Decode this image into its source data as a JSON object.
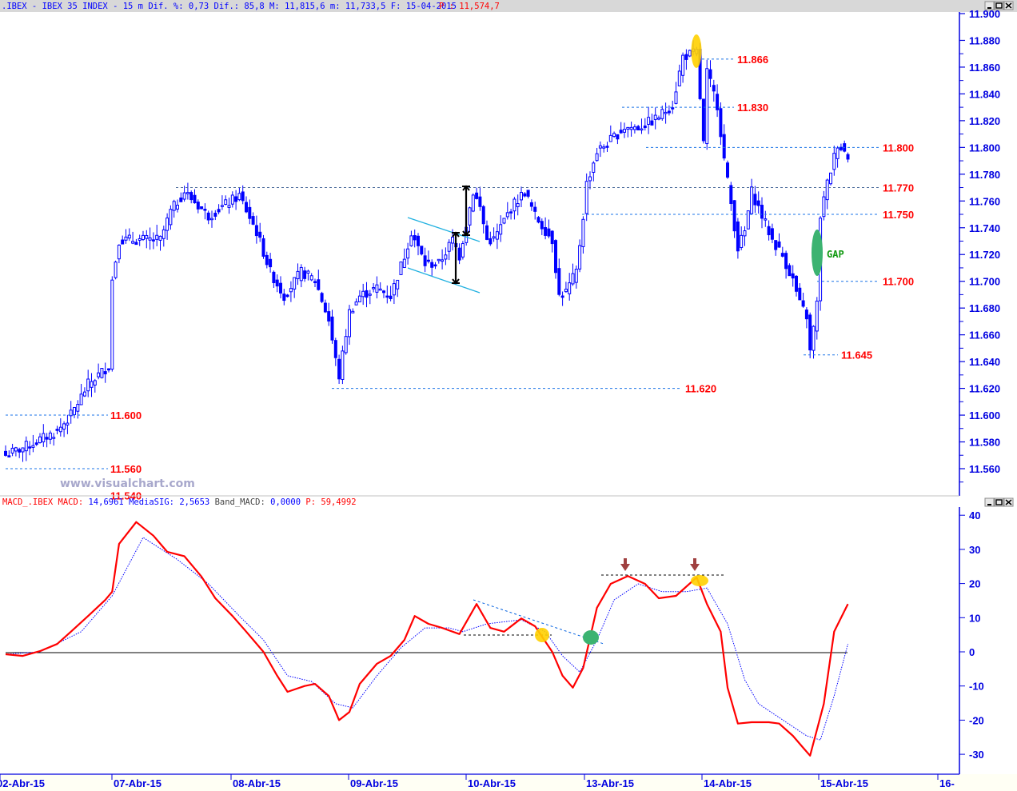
{
  "header": {
    "title": ".IBEX - IBEX 35 INDEX -  15 m Dif. %: 0,73 Dif.: 85,8 M: 11,815,6 m: 11,733,5 F: 15-04-2015",
    "price": "P : 11,574,7"
  },
  "macd_header": {
    "name": "MACD_.IBEX MACD:",
    "macd_value": "14,6961",
    "signal_label": "MediaSIG:",
    "signal_value": "2,5653",
    "band_label": "Band_MACD:",
    "band_value": "0,0000",
    "p_label": "P:",
    "p_value": "59,4992"
  },
  "watermark": "www.visualchart.com",
  "window_buttons": [
    "minimize",
    "maximize",
    "close"
  ],
  "colors": {
    "candle": "#0000ff",
    "level_label": "#ff0000",
    "level_line": "#1a73e8",
    "macd": "#ff0000",
    "signal": "#0000ff",
    "gap": "#3cb371",
    "highlight": "#ffd000"
  },
  "chart_data": [
    {
      "type": "candlestick",
      "title": "",
      "ylim": [
        11.54,
        11.9
      ],
      "y_ticks": [
        "11.900",
        "11.880",
        "11.860",
        "11.840",
        "11.820",
        "11.800",
        "11.780",
        "11.760",
        "11.740",
        "11.720",
        "11.700",
        "11.680",
        "11.660",
        "11.640",
        "11.620",
        "11.600",
        "11.580",
        "11.560"
      ],
      "x_ticks": [
        "02-Abr-15",
        "07-Abr-15",
        "08-Abr-15",
        "09-Abr-15",
        "10-Abr-15",
        "13-Abr-15",
        "14-Abr-15",
        "15-Abr-15",
        "16-"
      ],
      "interval": "15 m",
      "approx_close_path": [
        [
          0,
          11.57
        ],
        [
          8,
          11.579
        ],
        [
          15,
          11.588
        ],
        [
          19,
          11.6
        ],
        [
          24,
          11.623
        ],
        [
          30,
          11.637
        ],
        [
          31,
          11.701
        ],
        [
          33,
          11.731
        ],
        [
          36,
          11.731
        ],
        [
          40,
          11.731
        ],
        [
          45,
          11.731
        ],
        [
          48,
          11.752
        ],
        [
          52,
          11.767
        ],
        [
          59,
          11.749
        ],
        [
          68,
          11.764
        ],
        [
          73,
          11.737
        ],
        [
          77,
          11.707
        ],
        [
          81,
          11.689
        ],
        [
          86,
          11.707
        ],
        [
          90,
          11.701
        ],
        [
          94,
          11.671
        ],
        [
          96,
          11.641
        ],
        [
          97,
          11.629
        ],
        [
          100,
          11.677
        ],
        [
          103,
          11.689
        ],
        [
          108,
          11.695
        ],
        [
          112,
          11.689
        ],
        [
          116,
          11.719
        ],
        [
          118,
          11.737
        ],
        [
          122,
          11.713
        ],
        [
          126,
          11.713
        ],
        [
          130,
          11.731
        ],
        [
          132,
          11.719
        ],
        [
          133,
          11.731
        ],
        [
          136,
          11.767
        ],
        [
          138,
          11.755
        ],
        [
          140,
          11.731
        ],
        [
          142,
          11.731
        ],
        [
          147,
          11.755
        ],
        [
          151,
          11.767
        ],
        [
          154,
          11.749
        ],
        [
          159,
          11.731
        ],
        [
          161,
          11.689
        ],
        [
          163,
          11.692
        ],
        [
          166,
          11.707
        ],
        [
          168,
          11.749
        ],
        [
          169,
          11.773
        ],
        [
          172,
          11.797
        ],
        [
          175,
          11.803
        ],
        [
          180,
          11.815
        ],
        [
          184,
          11.815
        ],
        [
          189,
          11.821
        ],
        [
          194,
          11.832
        ],
        [
          197,
          11.868
        ],
        [
          201,
          11.871
        ],
        [
          203,
          11.803
        ],
        [
          204,
          11.856
        ],
        [
          207,
          11.832
        ],
        [
          209,
          11.791
        ],
        [
          211,
          11.758
        ],
        [
          213,
          11.725
        ],
        [
          215,
          11.737
        ],
        [
          217,
          11.767
        ],
        [
          220,
          11.749
        ],
        [
          223,
          11.731
        ],
        [
          226,
          11.719
        ],
        [
          229,
          11.701
        ],
        [
          231,
          11.683
        ],
        [
          233,
          11.674
        ],
        [
          234,
          11.647
        ],
        [
          236,
          11.683
        ],
        [
          237,
          11.749
        ],
        [
          239,
          11.773
        ],
        [
          242,
          11.803
        ],
        [
          245,
          11.794
        ]
      ],
      "levels": [
        {
          "label": "11.866",
          "value": 11.866
        },
        {
          "label": "11.830",
          "value": 11.83
        },
        {
          "label": "11.800",
          "value": 11.8
        },
        {
          "label": "11.770",
          "value": 11.77
        },
        {
          "label": "11.750",
          "value": 11.75
        },
        {
          "label": "11.700",
          "value": 11.7
        },
        {
          "label": "11.645",
          "value": 11.645
        },
        {
          "label": "11.620",
          "value": 11.62
        },
        {
          "label": "11.600",
          "value": 11.6
        },
        {
          "label": "11.560",
          "value": 11.56
        },
        {
          "label": "11.540",
          "value": 11.54
        }
      ],
      "annotations": {
        "gap_label": "GAP"
      }
    },
    {
      "type": "line",
      "title": "MACD",
      "ylim": [
        -35,
        42
      ],
      "y_ticks": [
        "40",
        "30",
        "20",
        "10",
        "0",
        "-10",
        "-20",
        "-30"
      ],
      "series": [
        {
          "name": "MACD",
          "points": [
            [
              0,
              -0.7
            ],
            [
              5,
              -1.2
            ],
            [
              10,
              0.2
            ],
            [
              15,
              2.3
            ],
            [
              19,
              5.9
            ],
            [
              24,
              10.5
            ],
            [
              29,
              15.2
            ],
            [
              31,
              17.6
            ],
            [
              33,
              31.6
            ],
            [
              38,
              38
            ],
            [
              43,
              34
            ],
            [
              47,
              29.3
            ],
            [
              52,
              28
            ],
            [
              57,
              22
            ],
            [
              61,
              15.7
            ],
            [
              66,
              10.5
            ],
            [
              70,
              5.9
            ],
            [
              75,
              0
            ],
            [
              79,
              -7
            ],
            [
              82,
              -11.7
            ],
            [
              87,
              -10
            ],
            [
              90,
              -9.4
            ],
            [
              94,
              -12.9
            ],
            [
              97,
              -20
            ],
            [
              100,
              -17.6
            ],
            [
              103,
              -9.4
            ],
            [
              108,
              -3.5
            ],
            [
              112,
              -1.2
            ],
            [
              116,
              3.5
            ],
            [
              119,
              10.5
            ],
            [
              123,
              8.2
            ],
            [
              127,
              7
            ],
            [
              132,
              5.2
            ],
            [
              137,
              14
            ],
            [
              141,
              7
            ],
            [
              145,
              5.9
            ],
            [
              150,
              9.8
            ],
            [
              154,
              7.5
            ],
            [
              159,
              0
            ],
            [
              162,
              -7
            ],
            [
              165,
              -10.5
            ],
            [
              168,
              -4.7
            ],
            [
              172,
              12.9
            ],
            [
              176,
              19.9
            ],
            [
              181,
              22.2
            ],
            [
              186,
              19.9
            ],
            [
              190,
              15.7
            ],
            [
              195,
              16.4
            ],
            [
              201,
              21.8
            ],
            [
              204,
              14
            ],
            [
              208,
              5.9
            ],
            [
              210,
              -10.5
            ],
            [
              213,
              -21
            ],
            [
              217,
              -20.6
            ],
            [
              222,
              -20.6
            ],
            [
              225,
              -21
            ],
            [
              229,
              -24.6
            ],
            [
              232,
              -28.1
            ],
            [
              234,
              -30.4
            ],
            [
              238,
              -15.2
            ],
            [
              241,
              5.9
            ],
            [
              245,
              14
            ]
          ]
        },
        {
          "name": "MediaSIG",
          "points": [
            [
              0,
              -0.7
            ],
            [
              10,
              0
            ],
            [
              22,
              5.9
            ],
            [
              31,
              16.4
            ],
            [
              40,
              33.5
            ],
            [
              50,
              27
            ],
            [
              59,
              19.9
            ],
            [
              68,
              10.5
            ],
            [
              75,
              3.5
            ],
            [
              82,
              -7
            ],
            [
              89,
              -8.7
            ],
            [
              96,
              -15.2
            ],
            [
              101,
              -16.4
            ],
            [
              108,
              -7
            ],
            [
              115,
              1.2
            ],
            [
              122,
              7
            ],
            [
              129,
              7
            ],
            [
              133,
              5.9
            ],
            [
              140,
              8.2
            ],
            [
              150,
              9.4
            ],
            [
              157,
              5.9
            ],
            [
              162,
              -1.2
            ],
            [
              167,
              -5.9
            ],
            [
              172,
              3.5
            ],
            [
              177,
              15.2
            ],
            [
              184,
              19.9
            ],
            [
              191,
              17.6
            ],
            [
              198,
              17.6
            ],
            [
              204,
              18.7
            ],
            [
              210,
              8.2
            ],
            [
              215,
              -8.2
            ],
            [
              219,
              -15.2
            ],
            [
              226,
              -19.9
            ],
            [
              233,
              -24.6
            ],
            [
              237,
              -25.8
            ],
            [
              241,
              -12.9
            ],
            [
              245,
              2.3
            ]
          ]
        }
      ]
    }
  ]
}
